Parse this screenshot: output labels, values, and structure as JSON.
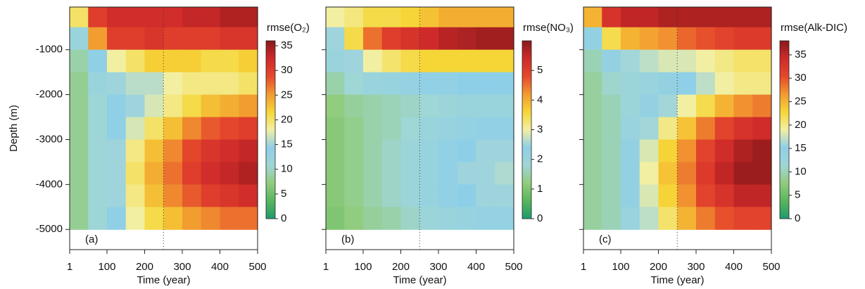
{
  "chart_data": [
    {
      "type": "heatmap",
      "panel_label": "(a)",
      "colorbar_title": "rmse(O₂)",
      "xlabel": "Time (year)",
      "ylabel": "Depth (m)",
      "xlim": [
        1,
        500
      ],
      "xticks": [
        1,
        100,
        200,
        300,
        400,
        500
      ],
      "ylim": [
        -5450,
        -50
      ],
      "yticks": [
        -1000,
        -2000,
        -3000,
        -4000,
        -5000
      ],
      "show_ytick_labels": true,
      "marker_x": 250,
      "clim": [
        0,
        36
      ],
      "cticks": [
        0,
        5,
        10,
        15,
        20,
        25,
        30,
        35
      ],
      "colormap": [
        "#1f9a6c",
        "#58b65c",
        "#92cc7e",
        "#9fd6d6",
        "#8ecfe8",
        "#f2efa2",
        "#f6d637",
        "#f29a30",
        "#e5482c",
        "#cf2a2a",
        "#8a1919"
      ],
      "x_edges": [
        1,
        50,
        100,
        150,
        200,
        250,
        300,
        350,
        400,
        450,
        500
      ],
      "y_edges": [
        -50,
        -500,
        -1000,
        -1500,
        -2000,
        -2500,
        -3000,
        -3500,
        -4000,
        -4500,
        -5000
      ],
      "z": [
        [
          20,
          30,
          32,
          32,
          32,
          32,
          33,
          33,
          34,
          34
        ],
        [
          12,
          25,
          30,
          30,
          31,
          30,
          30,
          30,
          31,
          31
        ],
        [
          9,
          14,
          18,
          20,
          22,
          22,
          22,
          21,
          21,
          22
        ],
        [
          8,
          12,
          15,
          16,
          16,
          18,
          19,
          19,
          19,
          20
        ],
        [
          8,
          11,
          14,
          15,
          17,
          19,
          21,
          23,
          24,
          25
        ],
        [
          8,
          11,
          14,
          17,
          20,
          23,
          26,
          28,
          29,
          30
        ],
        [
          8,
          11,
          15,
          19,
          23,
          26,
          29,
          31,
          32,
          33
        ],
        [
          8,
          11,
          15,
          20,
          24,
          27,
          30,
          32,
          33,
          34
        ],
        [
          8,
          11,
          15,
          19,
          23,
          26,
          28,
          30,
          31,
          32
        ],
        [
          8,
          11,
          14,
          18,
          21,
          23,
          25,
          26,
          27,
          27
        ]
      ]
    },
    {
      "type": "heatmap",
      "panel_label": "(b)",
      "colorbar_title": "rmse(NO₃)",
      "xlabel": "Time (year)",
      "xlim": [
        1,
        500
      ],
      "xticks": [
        1,
        100,
        200,
        300,
        400,
        500
      ],
      "ylim": [
        -5450,
        -50
      ],
      "yticks": [
        -1000,
        -2000,
        -3000,
        -4000,
        -5000
      ],
      "show_ytick_labels": false,
      "marker_x": 250,
      "clim": [
        0,
        6
      ],
      "cticks": [
        0,
        1,
        2,
        3,
        4,
        5
      ],
      "colormap": [
        "#1f9a6c",
        "#58b65c",
        "#92cc7e",
        "#9fd6d6",
        "#8ecfe8",
        "#f2efa2",
        "#f6d637",
        "#f29a30",
        "#e5482c",
        "#cf2a2a",
        "#8a1919"
      ],
      "x_edges": [
        1,
        50,
        100,
        150,
        200,
        250,
        300,
        350,
        400,
        450,
        500
      ],
      "y_edges": [
        -50,
        -500,
        -1000,
        -1500,
        -2000,
        -2500,
        -3000,
        -3500,
        -4000,
        -4500,
        -5000
      ],
      "z": [
        [
          3,
          3.2,
          3.5,
          3.5,
          3.6,
          3.8,
          4,
          4,
          4,
          4
        ],
        [
          2.5,
          3.5,
          4.5,
          5,
          5.2,
          5.4,
          5.6,
          5.7,
          5.8,
          5.8
        ],
        [
          2,
          2.5,
          3,
          3.3,
          3.5,
          3.6,
          3.6,
          3.6,
          3.6,
          3.6
        ],
        [
          1.5,
          1.8,
          2,
          2.1,
          2.2,
          2.3,
          2.3,
          2.4,
          2.4,
          2.4
        ],
        [
          1.2,
          1.4,
          1.5,
          1.6,
          1.7,
          1.8,
          1.9,
          2,
          2,
          2
        ],
        [
          1.1,
          1.3,
          1.5,
          1.6,
          1.8,
          2,
          2.1,
          2.2,
          2.3,
          2.3
        ],
        [
          1.1,
          1.3,
          1.5,
          1.7,
          1.9,
          2.1,
          2.3,
          2.4,
          2.5,
          2.5
        ],
        [
          1.1,
          1.3,
          1.5,
          1.7,
          1.9,
          2.1,
          2.3,
          2.5,
          2.5,
          2.6
        ],
        [
          1.1,
          1.3,
          1.5,
          1.7,
          1.9,
          2.1,
          2.3,
          2.4,
          2.5,
          2.5
        ],
        [
          1,
          1.2,
          1.4,
          1.5,
          1.7,
          1.9,
          2,
          2.1,
          2.2,
          2.2
        ]
      ]
    },
    {
      "type": "heatmap",
      "panel_label": "(c)",
      "colorbar_title": "rmse(Alk-DIC)",
      "xlabel": "Time (year)",
      "xlim": [
        1,
        500
      ],
      "xticks": [
        1,
        100,
        200,
        300,
        400,
        500
      ],
      "ylim": [
        -5450,
        -50
      ],
      "yticks": [
        -1000,
        -2000,
        -3000,
        -4000,
        -5000
      ],
      "show_ytick_labels": false,
      "marker_x": 250,
      "clim": [
        0,
        38
      ],
      "cticks": [
        0,
        5,
        10,
        15,
        20,
        25,
        30,
        35
      ],
      "colormap": [
        "#1f9a6c",
        "#58b65c",
        "#92cc7e",
        "#9fd6d6",
        "#8ecfe8",
        "#f2efa2",
        "#f6d637",
        "#f29a30",
        "#e5482c",
        "#cf2a2a",
        "#8a1919"
      ],
      "x_edges": [
        1,
        50,
        100,
        150,
        200,
        250,
        300,
        350,
        400,
        450,
        500
      ],
      "y_edges": [
        -50,
        -500,
        -1000,
        -1500,
        -2000,
        -2500,
        -3000,
        -3500,
        -4000,
        -4500,
        -5000
      ],
      "z": [
        [
          25,
          33,
          35,
          35,
          36,
          36,
          36,
          36,
          36,
          36
        ],
        [
          14,
          22,
          25,
          26,
          27,
          29,
          30,
          31,
          32,
          32
        ],
        [
          10,
          14,
          16,
          17,
          18,
          18,
          19,
          20,
          21,
          21
        ],
        [
          9,
          11,
          12,
          13,
          14,
          15,
          17,
          19,
          20,
          20
        ],
        [
          9,
          10,
          12,
          14,
          16,
          19,
          22,
          25,
          27,
          28
        ],
        [
          9,
          10,
          13,
          16,
          20,
          24,
          28,
          31,
          33,
          34
        ],
        [
          9,
          10,
          14,
          18,
          23,
          27,
          31,
          34,
          36,
          37
        ],
        [
          9,
          10,
          14,
          19,
          24,
          28,
          32,
          35,
          37,
          37
        ],
        [
          9,
          10,
          14,
          18,
          23,
          27,
          31,
          33,
          35,
          35
        ],
        [
          9,
          10,
          13,
          17,
          21,
          25,
          28,
          30,
          31,
          31
        ]
      ]
    }
  ]
}
